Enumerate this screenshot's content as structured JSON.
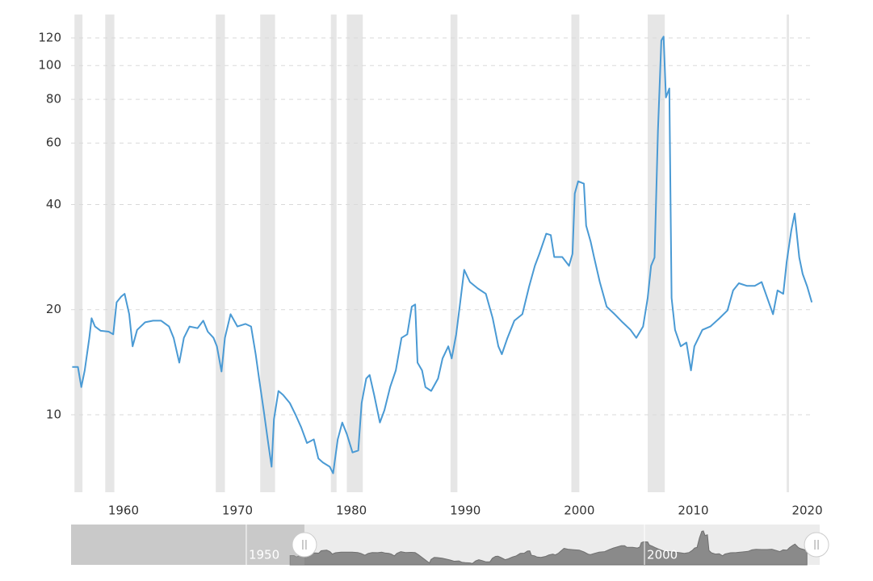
{
  "chart_data": {
    "type": "line",
    "log_y": true,
    "grid": true,
    "xlim": [
      1955.4,
      2020.6
    ],
    "xticks": [
      1960,
      1970,
      1980,
      1990,
      2000,
      2010,
      2020
    ],
    "ylim": [
      6,
      140
    ],
    "yticks": [
      10,
      20,
      40,
      60,
      80,
      100,
      120
    ],
    "shaded_ranges": [
      [
        1955.7,
        1956.4
      ],
      [
        1958.4,
        1959.2
      ],
      [
        1968.1,
        1968.9
      ],
      [
        1972.0,
        1973.3
      ],
      [
        1978.2,
        1978.7
      ],
      [
        1979.6,
        1981.0
      ],
      [
        1988.7,
        1989.3
      ],
      [
        1999.3,
        2000.0
      ],
      [
        2006.0,
        2007.5
      ],
      [
        2018.2,
        2018.4
      ]
    ],
    "shade_color": "#e6e6e6",
    "series": [
      {
        "color": "#4a9ad4",
        "x": [
          1955.5,
          1956.0,
          1956.3,
          1956.6,
          1957.0,
          1957.2,
          1957.5,
          1958.0,
          1958.7,
          1959.1,
          1959.4,
          1959.8,
          1960.1,
          1960.5,
          1960.8,
          1961.2,
          1961.9,
          1962.6,
          1963.3,
          1964.0,
          1964.4,
          1964.9,
          1965.3,
          1965.8,
          1966.5,
          1967.0,
          1967.4,
          1967.9,
          1968.2,
          1968.6,
          1968.9,
          1969.4,
          1970.0,
          1970.7,
          1971.2,
          1971.6,
          1971.9,
          1972.3,
          1972.7,
          1973.0,
          1973.2,
          1973.6,
          1974.0,
          1974.6,
          1975.1,
          1975.6,
          1976.1,
          1976.7,
          1977.1,
          1977.5,
          1978.1,
          1978.4,
          1978.8,
          1979.2,
          1979.6,
          1980.1,
          1980.6,
          1980.9,
          1981.3,
          1981.6,
          1982.0,
          1982.5,
          1982.9,
          1983.4,
          1983.9,
          1984.4,
          1984.9,
          1985.3,
          1985.6,
          1985.8,
          1986.2,
          1986.5,
          1987.0,
          1987.6,
          1988.0,
          1988.5,
          1988.8,
          1989.2,
          1989.5,
          1989.9,
          1990.4,
          1991.1,
          1991.8,
          1992.4,
          1992.9,
          1993.2,
          1993.7,
          1994.3,
          1995.0,
          1995.6,
          1996.1,
          1996.5,
          1997.1,
          1997.5,
          1997.8,
          1998.5,
          1999.1,
          1999.4,
          1999.6,
          1999.9,
          2000.4,
          2000.6,
          2001.0,
          2001.3,
          2001.8,
          2002.4,
          2003.1,
          2003.8,
          2004.5,
          2005.0,
          2005.6,
          2006.0,
          2006.3,
          2006.6,
          2006.9,
          2007.2,
          2007.4,
          2007.6,
          2007.9,
          2008.1,
          2008.4,
          2008.9,
          2009.4,
          2009.8,
          2010.1,
          2010.8,
          2011.5,
          2012.3,
          2013.0,
          2013.5,
          2014.0,
          2014.7,
          2015.4,
          2016.0,
          2016.5,
          2017.0,
          2017.4,
          2017.9,
          2018.2,
          2018.6,
          2018.9,
          2019.3,
          2019.6,
          2020.0,
          2020.4
        ],
        "values": [
          13.7,
          13.7,
          12.0,
          13.4,
          16.6,
          18.9,
          17.9,
          17.4,
          17.3,
          17.0,
          21.0,
          21.8,
          22.2,
          19.4,
          15.7,
          17.5,
          18.4,
          18.6,
          18.6,
          17.9,
          16.6,
          14.1,
          16.6,
          17.9,
          17.7,
          18.6,
          17.3,
          16.6,
          15.7,
          13.3,
          16.6,
          19.4,
          17.9,
          18.2,
          17.9,
          14.9,
          12.7,
          10.3,
          8.3,
          7.1,
          9.7,
          11.7,
          11.4,
          10.8,
          10.0,
          9.2,
          8.3,
          8.5,
          7.5,
          7.3,
          7.1,
          6.8,
          8.5,
          9.5,
          8.8,
          7.8,
          7.9,
          10.8,
          12.7,
          13.0,
          11.4,
          9.5,
          10.3,
          12.0,
          13.4,
          16.6,
          17.0,
          20.4,
          20.7,
          14.1,
          13.4,
          12.0,
          11.7,
          12.7,
          14.5,
          15.7,
          14.5,
          17.0,
          20.4,
          26.0,
          24.0,
          23.0,
          22.2,
          18.9,
          15.7,
          14.9,
          16.6,
          18.6,
          19.4,
          23.3,
          26.7,
          28.9,
          33.0,
          32.7,
          28.3,
          28.3,
          26.7,
          28.9,
          43.0,
          46.6,
          45.9,
          34.8,
          31.3,
          28.2,
          24.0,
          20.4,
          19.4,
          18.4,
          17.5,
          16.6,
          17.9,
          21.6,
          26.7,
          28.2,
          65.0,
          118.0,
          121.0,
          81.0,
          86.0,
          21.6,
          17.5,
          15.7,
          16.1,
          13.4,
          15.7,
          17.5,
          17.9,
          18.9,
          19.9,
          22.7,
          23.8,
          23.4,
          23.4,
          24.0,
          21.6,
          19.4,
          22.7,
          22.2,
          27.4,
          33.7,
          37.7,
          28.2,
          25.3,
          23.3,
          21.0
        ]
      }
    ],
    "navigator": {
      "xlim": [
        1928,
        2022
      ],
      "labels": [
        1950,
        2000
      ],
      "selection": [
        1957.3,
        2021.6
      ]
    }
  }
}
